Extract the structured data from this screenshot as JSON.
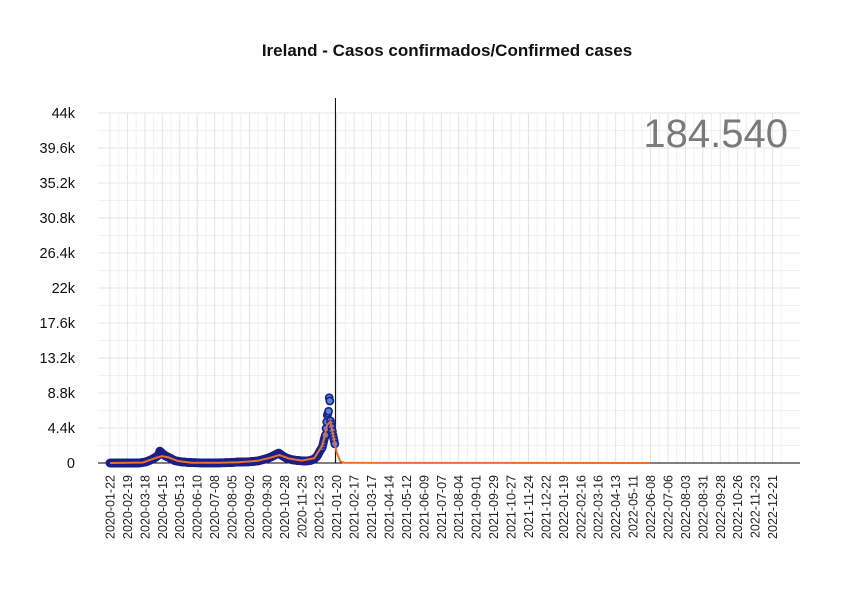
{
  "chart_data": {
    "type": "scatter",
    "title": "Ireland - Casos confirmados/Confirmed cases",
    "total_label": "184.540",
    "xlabel": "",
    "ylabel": "",
    "ylim": [
      0,
      44000
    ],
    "y_ticks": [
      0,
      4400,
      8800,
      13200,
      17600,
      22000,
      26400,
      30800,
      35200,
      39600,
      44000
    ],
    "y_tick_labels": [
      "0",
      "4.4k",
      "8.8k",
      "13.2k",
      "17.6k",
      "22k",
      "26.4k",
      "30.8k",
      "35.2k",
      "39.6k",
      "44k"
    ],
    "x_range": [
      "2020-01-22",
      "2023-01-18"
    ],
    "x_tick_labels": [
      "2020-01-22",
      "2020-02-19",
      "2020-03-18",
      "2020-04-15",
      "2020-05-13",
      "2020-06-10",
      "2020-07-08",
      "2020-08-05",
      "2020-09-02",
      "2020-09-30",
      "2020-10-28",
      "2020-11-25",
      "2020-12-23",
      "2021-01-20",
      "2021-02-17",
      "2021-03-17",
      "2021-04-14",
      "2021-05-12",
      "2021-06-09",
      "2021-07-07",
      "2021-08-04",
      "2021-09-01",
      "2021-09-29",
      "2021-10-27",
      "2021-11-24",
      "2021-12-22",
      "2022-01-19",
      "2022-02-16",
      "2022-03-16",
      "2022-04-13",
      "2022-05-11",
      "2022-06-08",
      "2022-07-06",
      "2022-08-03",
      "2022-08-31",
      "2022-09-28",
      "2022-10-26",
      "2022-11-23",
      "2022-12-21"
    ],
    "current_date_line": "2021-01-18",
    "grid": true,
    "series": [
      {
        "kind": "daily-points",
        "color": "#1b1f8a",
        "fill": "#5b7fd6",
        "points": [
          [
            "2020-01-22",
            0
          ],
          [
            "2020-03-01",
            0
          ],
          [
            "2020-03-10",
            10
          ],
          [
            "2020-03-20",
            150
          ],
          [
            "2020-03-28",
            400
          ],
          [
            "2020-04-04",
            700
          ],
          [
            "2020-04-09",
            1000
          ],
          [
            "2020-04-11",
            1500
          ],
          [
            "2020-04-15",
            1200
          ],
          [
            "2020-04-20",
            900
          ],
          [
            "2020-04-28",
            600
          ],
          [
            "2020-05-05",
            300
          ],
          [
            "2020-05-15",
            150
          ],
          [
            "2020-05-28",
            60
          ],
          [
            "2020-06-15",
            20
          ],
          [
            "2020-07-01",
            15
          ],
          [
            "2020-07-15",
            20
          ],
          [
            "2020-08-01",
            50
          ],
          [
            "2020-08-15",
            120
          ],
          [
            "2020-09-01",
            150
          ],
          [
            "2020-09-15",
            250
          ],
          [
            "2020-09-25",
            450
          ],
          [
            "2020-10-05",
            700
          ],
          [
            "2020-10-15",
            1100
          ],
          [
            "2020-10-19",
            1250
          ],
          [
            "2020-10-25",
            900
          ],
          [
            "2020-11-01",
            600
          ],
          [
            "2020-11-10",
            400
          ],
          [
            "2020-11-20",
            300
          ],
          [
            "2020-11-30",
            250
          ],
          [
            "2020-12-08",
            300
          ],
          [
            "2020-12-15",
            500
          ],
          [
            "2020-12-20",
            900
          ],
          [
            "2020-12-24",
            1500
          ],
          [
            "2020-12-28",
            2000
          ],
          [
            "2020-12-31",
            3000
          ],
          [
            "2021-01-02",
            3500
          ],
          [
            "2021-01-05",
            6000
          ],
          [
            "2021-01-07",
            6500
          ],
          [
            "2021-01-08",
            8200
          ],
          [
            "2021-01-09",
            7800
          ],
          [
            "2021-01-10",
            5300
          ],
          [
            "2021-01-12",
            4500
          ],
          [
            "2021-01-14",
            3500
          ],
          [
            "2021-01-16",
            2800
          ],
          [
            "2021-01-17",
            2400
          ]
        ]
      },
      {
        "kind": "trend-line",
        "color": "#e8702a",
        "points": [
          [
            "2020-01-22",
            0
          ],
          [
            "2020-03-15",
            60
          ],
          [
            "2020-04-05",
            650
          ],
          [
            "2020-04-14",
            850
          ],
          [
            "2020-04-25",
            700
          ],
          [
            "2020-05-10",
            250
          ],
          [
            "2020-06-01",
            40
          ],
          [
            "2020-07-15",
            20
          ],
          [
            "2020-08-15",
            100
          ],
          [
            "2020-09-15",
            280
          ],
          [
            "2020-10-05",
            650
          ],
          [
            "2020-10-20",
            1000
          ],
          [
            "2020-11-05",
            550
          ],
          [
            "2020-11-25",
            300
          ],
          [
            "2020-12-15",
            600
          ],
          [
            "2020-12-28",
            2200
          ],
          [
            "2021-01-05",
            4800
          ],
          [
            "2021-01-10",
            5200
          ],
          [
            "2021-01-15",
            3200
          ],
          [
            "2021-01-20",
            1300
          ],
          [
            "2021-01-26",
            200
          ],
          [
            "2021-02-01",
            20
          ],
          [
            "2022-06-08",
            0
          ]
        ]
      }
    ]
  }
}
